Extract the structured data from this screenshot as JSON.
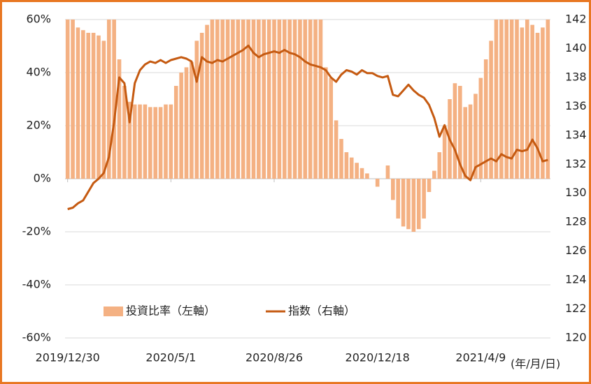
{
  "chart_data": {
    "type": "bar",
    "x_label": "(年/月/日)",
    "categories": [
      "2019/12/30",
      null,
      null,
      null,
      null,
      null,
      null,
      null,
      null,
      null,
      null,
      null,
      null,
      null,
      null,
      null,
      null,
      null,
      null,
      null,
      "2020/5/1",
      null,
      null,
      null,
      null,
      null,
      null,
      null,
      null,
      null,
      null,
      null,
      null,
      null,
      null,
      null,
      null,
      null,
      null,
      null,
      "2020/8/26",
      null,
      null,
      null,
      null,
      null,
      null,
      null,
      null,
      null,
      null,
      null,
      null,
      null,
      null,
      null,
      null,
      null,
      null,
      null,
      "2020/12/18",
      null,
      null,
      null,
      null,
      null,
      null,
      null,
      null,
      null,
      null,
      null,
      null,
      null,
      null,
      null,
      null,
      null,
      null,
      null,
      "2021/4/9",
      null,
      null,
      null,
      null,
      null,
      null,
      null,
      null,
      null,
      null,
      null,
      null,
      null
    ],
    "series": [
      {
        "name": "投資比率（左軸）",
        "type": "bar",
        "color": "#f4b183",
        "values": [
          60,
          60,
          57,
          56,
          55,
          55,
          54,
          52,
          60,
          60,
          45,
          35,
          29,
          28,
          28,
          28,
          27,
          27,
          27,
          28,
          28,
          35,
          40,
          42,
          44,
          52,
          55,
          58,
          60,
          60,
          60,
          60,
          60,
          60,
          60,
          60,
          60,
          60,
          60,
          60,
          60,
          60,
          60,
          60,
          60,
          60,
          60,
          60,
          60,
          60,
          42,
          38,
          22,
          15,
          10,
          8,
          6,
          4,
          2,
          0,
          -3,
          0,
          5,
          -8,
          -15,
          -18,
          -19,
          -20,
          -19,
          -15,
          -5,
          3,
          10,
          20,
          30,
          36,
          35,
          27,
          28,
          32,
          38,
          45,
          52,
          60,
          60,
          60,
          60,
          60,
          57,
          60,
          58,
          55,
          57,
          60
        ]
      },
      {
        "name": "指数（右軸）",
        "type": "line",
        "axis": "y2",
        "color": "#c55a11",
        "values": [
          128.9,
          129.0,
          129.3,
          129.5,
          130.1,
          130.7,
          131.0,
          131.4,
          132.5,
          134.9,
          138.0,
          137.6,
          134.9,
          137.6,
          138.5,
          138.9,
          139.1,
          139.0,
          139.2,
          139.0,
          139.2,
          139.3,
          139.4,
          139.3,
          139.1,
          137.7,
          139.4,
          139.1,
          139.0,
          139.2,
          139.1,
          139.3,
          139.5,
          139.7,
          139.9,
          140.2,
          139.7,
          139.4,
          139.6,
          139.7,
          139.8,
          139.7,
          139.9,
          139.7,
          139.6,
          139.4,
          139.1,
          138.9,
          138.8,
          138.7,
          138.5,
          138.0,
          137.7,
          138.2,
          138.5,
          138.4,
          138.2,
          138.5,
          138.3,
          138.3,
          138.1,
          138.0,
          138.1,
          136.8,
          136.7,
          137.1,
          137.5,
          137.1,
          136.8,
          136.6,
          136.1,
          135.2,
          133.9,
          134.7,
          133.7,
          133.0,
          132.0,
          131.2,
          130.9,
          131.8,
          132.0,
          132.2,
          132.4,
          132.2,
          132.7,
          132.5,
          132.4,
          133.0,
          132.9,
          133.0,
          133.7,
          133.1,
          132.2,
          132.3
        ]
      }
    ],
    "ylim": [
      -60,
      60
    ],
    "yticks": [
      {
        "value": -60,
        "label": "-60%"
      },
      {
        "value": -40,
        "label": "-40%"
      },
      {
        "value": -20,
        "label": "-20%"
      },
      {
        "value": 0,
        "label": "0%"
      },
      {
        "value": 20,
        "label": "20%"
      },
      {
        "value": 40,
        "label": "40%"
      },
      {
        "value": 60,
        "label": "60%"
      }
    ],
    "y2lim": [
      120,
      142
    ],
    "y2ticks": [
      120,
      122,
      124,
      126,
      128,
      130,
      132,
      134,
      136,
      138,
      140,
      142
    ],
    "grid": true
  }
}
